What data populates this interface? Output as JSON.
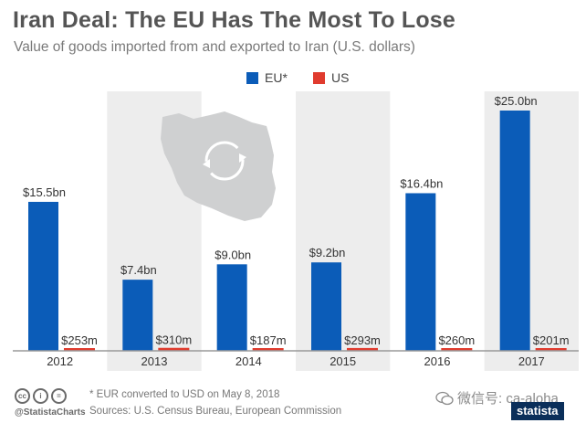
{
  "header": {
    "title": "Iran Deal: The EU Has The Most To Lose",
    "subtitle": "Value of goods imported from and exported to Iran (U.S. dollars)"
  },
  "legend": [
    {
      "name": "EU*",
      "color": "#0b5cb8"
    },
    {
      "name": "US",
      "color": "#e03b2e"
    }
  ],
  "chart_data": {
    "type": "bar",
    "categories": [
      "2012",
      "2013",
      "2014",
      "2015",
      "2016",
      "2017"
    ],
    "series": [
      {
        "name": "EU*",
        "values": [
          15.5,
          7.4,
          9.0,
          9.2,
          16.4,
          25.0
        ],
        "labels": [
          "$15.5bn",
          "$7.4bn",
          "$9.0bn",
          "$9.2bn",
          "$16.4bn",
          "$25.0bn"
        ]
      },
      {
        "name": "US",
        "values": [
          0.253,
          0.31,
          0.187,
          0.293,
          0.26,
          0.201
        ],
        "labels": [
          "$253m",
          "$310m",
          "$187m",
          "$293m",
          "$260m",
          "$201m"
        ]
      }
    ],
    "unit": "billion USD",
    "ylim": [
      0,
      25.0
    ],
    "grid": false,
    "legend_position": "top-center",
    "shaded_categories": [
      "2013",
      "2015",
      "2017"
    ],
    "colors": {
      "eu": "#0b5cb8",
      "us": "#e03b2e",
      "shade": "#ededed"
    }
  },
  "footer": {
    "handle": "@StatistaCharts",
    "note": "* EUR converted to USD on May 8, 2018",
    "source": "Sources: U.S. Census Bureau, European Commission",
    "watermark": "微信号: ca-aloha",
    "logo": "statista"
  }
}
